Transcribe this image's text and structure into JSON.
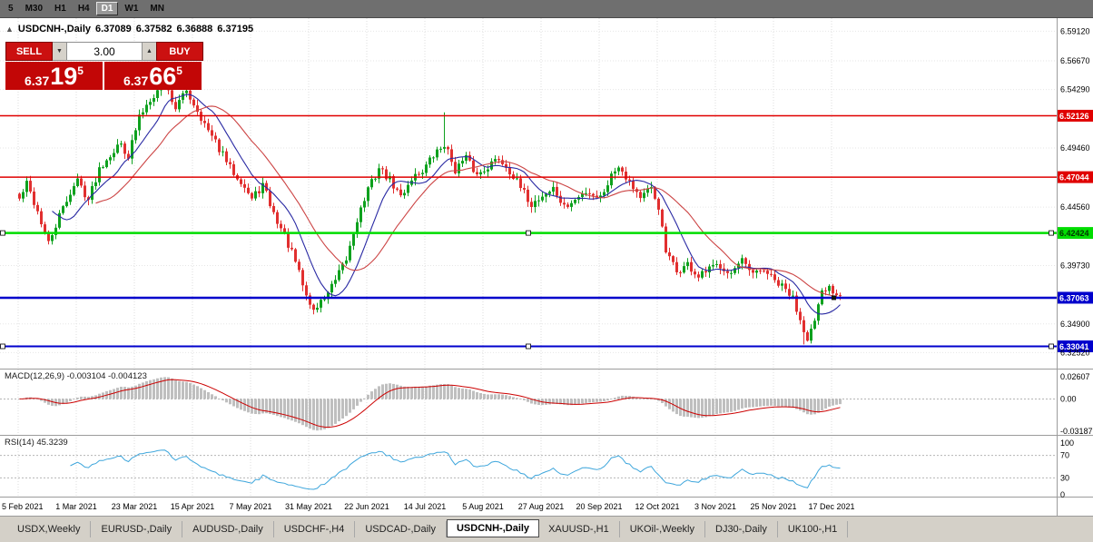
{
  "colors": {
    "button_red": "#cb1010",
    "quote_red": "#c20606",
    "candle_up": "#0ea11e",
    "candle_down": "#e12f2f",
    "ma_fast_blue": "#2929a3",
    "ma_slow_red": "#cc4444",
    "macd_histogram": "#bfbfbf",
    "macd_signal": "#cc0000",
    "rsi_line": "#3ea6dc",
    "grid": "#dcdcdc",
    "divider": "#9c9c9c"
  },
  "toolbar": {
    "timeframes": [
      {
        "label": "5"
      },
      {
        "label": "M30"
      },
      {
        "label": "H1"
      },
      {
        "label": "H4"
      },
      {
        "label": "D1",
        "active": true
      },
      {
        "label": "W1"
      },
      {
        "label": "MN"
      }
    ]
  },
  "chart_header": {
    "collapse_icon": "▲",
    "title": "USDCNH-,Daily",
    "open": "6.37089",
    "high": "6.37582",
    "low": "6.36888",
    "close": "6.37195"
  },
  "trade_panel": {
    "sell_label": "SELL",
    "buy_label": "BUY",
    "volume": "3.00",
    "spinner_down": "▼",
    "spinner_up": "▲",
    "bid": {
      "base": "6.37",
      "pips": "19",
      "frac": "5"
    },
    "ask": {
      "base": "6.37",
      "pips": "66",
      "frac": "5"
    }
  },
  "price_axis": {
    "ticks": [
      {
        "label": "6.59120",
        "price": 6.5912
      },
      {
        "label": "6.56670",
        "price": 6.5667
      },
      {
        "label": "6.54290",
        "price": 6.5429
      },
      {
        "label": "6.49460",
        "price": 6.4946
      },
      {
        "label": "6.44560",
        "price": 6.4456
      },
      {
        "label": "6.39730",
        "price": 6.3973
      },
      {
        "label": "6.34900",
        "price": 6.349
      },
      {
        "label": "6.32520",
        "price": 6.3252
      }
    ]
  },
  "hlines": [
    {
      "label": "6.52126",
      "price": 6.52126,
      "color": "#e00000",
      "text_color": "#ffffff",
      "width": 1.5,
      "handles": "none"
    },
    {
      "label": "6.47044",
      "price": 6.47044,
      "color": "#e00000",
      "text_color": "#ffffff",
      "width": 1.5,
      "handles": "none"
    },
    {
      "label": "6.42424",
      "price": 6.42424,
      "color": "#00dd00",
      "text_color": "#003300",
      "width": 2.5,
      "handles": "ends-center"
    },
    {
      "label": "6.37063",
      "price": 6.37063,
      "color": "#0000cc",
      "text_color": "#ffffff",
      "width": 2.5,
      "handles": "right-dot"
    },
    {
      "label": "6.33041",
      "price": 6.33041,
      "color": "#0000cc",
      "text_color": "#ffffff",
      "width": 2,
      "handles": "ends-center"
    }
  ],
  "macd": {
    "label": "MACD(12,26,9) -0.003104 -0.004123",
    "fast": 12,
    "slow": 26,
    "signal": 9,
    "axis": [
      {
        "label": "0.02607",
        "value": 0.02607
      },
      {
        "label": "0.00",
        "value": 0
      },
      {
        "label": "-0.03187",
        "value": -0.03187
      }
    ]
  },
  "rsi": {
    "label": "RSI(14) 45.3239",
    "period": 14,
    "levels": [
      70,
      30
    ],
    "axis": [
      {
        "label": "100",
        "value": 100
      },
      {
        "label": "70",
        "value": 70
      },
      {
        "label": "30",
        "value": 30
      },
      {
        "label": "0",
        "value": 0
      }
    ]
  },
  "dates": [
    "5 Feb 2021",
    "1 Mar 2021",
    "23 Mar 2021",
    "15 Apr 2021",
    "7 May 2021",
    "31 May 2021",
    "22 Jun 2021",
    "14 Jul 2021",
    "5 Aug 2021",
    "27 Aug 2021",
    "20 Sep 2021",
    "12 Oct 2021",
    "3 Nov 2021",
    "25 Nov 2021",
    "17 Dec 2021"
  ],
  "tabs": [
    {
      "label": "USDX,Weekly"
    },
    {
      "label": "EURUSD-,Daily"
    },
    {
      "label": "AUDUSD-,Daily"
    },
    {
      "label": "USDCHF-,H4"
    },
    {
      "label": "USDCAD-,Daily"
    },
    {
      "label": "USDCNH-,Daily",
      "active": true
    },
    {
      "label": "XAUUSD-,H1"
    },
    {
      "label": "UKOil-,Weekly"
    },
    {
      "label": "DJ30-,Daily"
    },
    {
      "label": "UK100-,H1"
    }
  ],
  "chart_data": {
    "type": "candlestick",
    "symbol": "USDCNH-",
    "timeframe": "Daily",
    "bars": 227,
    "seed": 42,
    "noise": 0.007,
    "last_close": 6.37195,
    "price_range": [
      6.312,
      6.602
    ],
    "anchors": [
      [
        0,
        6.452
      ],
      [
        2,
        6.465
      ],
      [
        5,
        6.442
      ],
      [
        8,
        6.415
      ],
      [
        11,
        6.438
      ],
      [
        14,
        6.458
      ],
      [
        16,
        6.468
      ],
      [
        19,
        6.452
      ],
      [
        22,
        6.478
      ],
      [
        25,
        6.49
      ],
      [
        28,
        6.498
      ],
      [
        30,
        6.488
      ],
      [
        33,
        6.52
      ],
      [
        36,
        6.536
      ],
      [
        40,
        6.548
      ],
      [
        43,
        6.528
      ],
      [
        46,
        6.542
      ],
      [
        49,
        6.526
      ],
      [
        52,
        6.508
      ],
      [
        55,
        6.494
      ],
      [
        58,
        6.478
      ],
      [
        61,
        6.468
      ],
      [
        64,
        6.452
      ],
      [
        67,
        6.464
      ],
      [
        70,
        6.44
      ],
      [
        73,
        6.422
      ],
      [
        76,
        6.4
      ],
      [
        79,
        6.372
      ],
      [
        81,
        6.36
      ],
      [
        84,
        6.371
      ],
      [
        87,
        6.384
      ],
      [
        90,
        6.402
      ],
      [
        93,
        6.436
      ],
      [
        96,
        6.46
      ],
      [
        99,
        6.478
      ],
      [
        102,
        6.468
      ],
      [
        105,
        6.454
      ],
      [
        108,
        6.47
      ],
      [
        111,
        6.476
      ],
      [
        114,
        6.488
      ],
      [
        117,
        6.498
      ],
      [
        120,
        6.477
      ],
      [
        123,
        6.486
      ],
      [
        126,
        6.472
      ],
      [
        129,
        6.48
      ],
      [
        132,
        6.486
      ],
      [
        135,
        6.476
      ],
      [
        138,
        6.461
      ],
      [
        141,
        6.448
      ],
      [
        144,
        6.455
      ],
      [
        147,
        6.461
      ],
      [
        150,
        6.445
      ],
      [
        153,
        6.451
      ],
      [
        156,
        6.459
      ],
      [
        160,
        6.454
      ],
      [
        163,
        6.472
      ],
      [
        165,
        6.481
      ],
      [
        168,
        6.467
      ],
      [
        171,
        6.454
      ],
      [
        174,
        6.46
      ],
      [
        176,
        6.446
      ],
      [
        178,
        6.408
      ],
      [
        181,
        6.392
      ],
      [
        184,
        6.398
      ],
      [
        187,
        6.387
      ],
      [
        190,
        6.394
      ],
      [
        193,
        6.398
      ],
      [
        196,
        6.391
      ],
      [
        199,
        6.4
      ],
      [
        202,
        6.389
      ],
      [
        205,
        6.394
      ],
      [
        208,
        6.384
      ],
      [
        211,
        6.377
      ],
      [
        213,
        6.37
      ],
      [
        215,
        6.353
      ],
      [
        217,
        6.338
      ],
      [
        219,
        6.35
      ],
      [
        221,
        6.374
      ],
      [
        223,
        6.379
      ],
      [
        226,
        6.372
      ]
    ],
    "wick_overrides": [
      [
        117,
        "high",
        6.524
      ],
      [
        216,
        "low",
        6.332
      ]
    ],
    "ma": [
      {
        "period": 10,
        "color": "#2929a3"
      },
      {
        "period": 22,
        "color": "#cc4444"
      }
    ]
  }
}
